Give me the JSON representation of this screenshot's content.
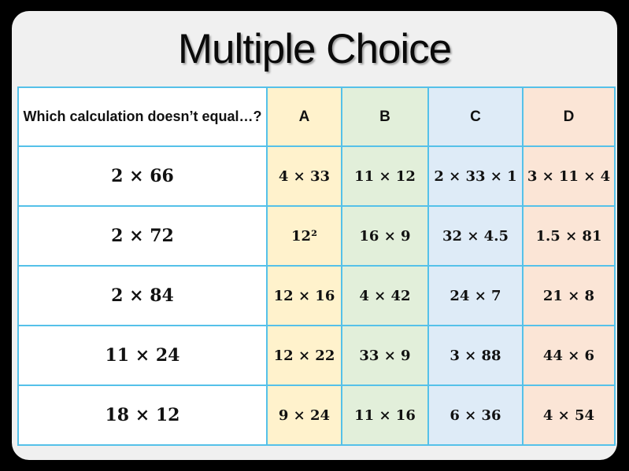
{
  "title": "Multiple Choice",
  "colors": {
    "background": "#000000",
    "card": "#f0f0f0",
    "table_border": "#55c1e9",
    "col_question": "#ffffff",
    "col_a": "#fff2cc",
    "col_b": "#e2efda",
    "col_c": "#deebf7",
    "col_d": "#fbe5d6",
    "text": "#111111"
  },
  "table": {
    "header": {
      "question": "Which calculation doesn’t equal…?",
      "options": [
        "A",
        "B",
        "C",
        "D"
      ]
    },
    "rows": [
      {
        "question": "2 × 66",
        "a": "4 × 33",
        "b": "11 × 12",
        "c": "2 × 33 × 1",
        "d": "3 × 11 × 4"
      },
      {
        "question": "2 × 72",
        "a": "12²",
        "b": "16 × 9",
        "c": "32 × 4.5",
        "d": "1.5 × 81"
      },
      {
        "question": "2 × 84",
        "a": "12 × 16",
        "b": "4 × 42",
        "c": "24 × 7",
        "d": "21 × 8"
      },
      {
        "question": "11 × 24",
        "a": "12 × 22",
        "b": "33 × 9",
        "c": "3 × 88",
        "d": "44 × 6"
      },
      {
        "question": "18 × 12",
        "a": "9 × 24",
        "b": "11 × 16",
        "c": "6 × 36",
        "d": "4 × 54"
      }
    ]
  }
}
